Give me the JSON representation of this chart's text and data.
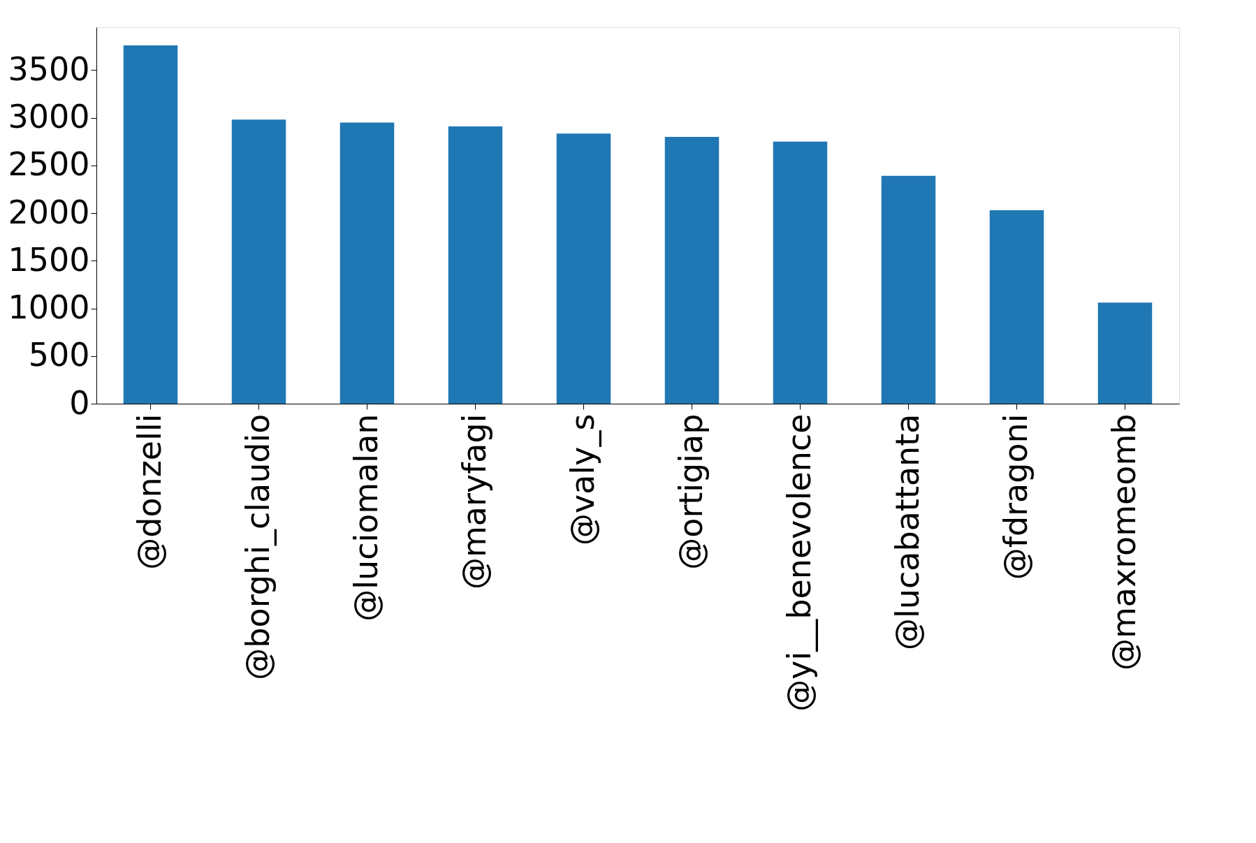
{
  "chart_data": {
    "type": "bar",
    "categories": [
      "@donzelli",
      "@borghi_claudio",
      "@luciomalan",
      "@maryfagi",
      "@valy_s",
      "@ortigiap",
      "@yi__benevolence",
      "@lucabattanta",
      "@fdragoni",
      "@maxromeomb"
    ],
    "values": [
      3760,
      2980,
      2950,
      2910,
      2835,
      2800,
      2750,
      2390,
      2030,
      1060
    ],
    "color": "#1f77b4",
    "ylim": [
      0,
      3950
    ],
    "yticks": [
      0,
      500,
      1000,
      1500,
      2000,
      2500,
      3000,
      3500
    ],
    "grid": false
  }
}
